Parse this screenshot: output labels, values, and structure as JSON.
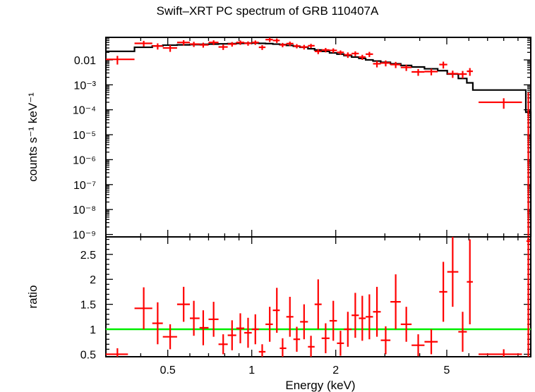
{
  "title": "Swift–XRT PC spectrum of GRB 110407A",
  "chart_data": [
    {
      "panel": "spectrum",
      "type": "scatter",
      "ylabel": "counts s⁻¹ keV⁻¹",
      "yscale": "log",
      "xscale": "log",
      "xlim": [
        0.3,
        10
      ],
      "ylim": [
        8e-10,
        0.08
      ],
      "ytick_labels": [
        "0.01",
        "10⁻³",
        "10⁻⁴",
        "10⁻⁵",
        "10⁻⁶",
        "10⁻⁷",
        "10⁻⁸",
        "10⁻⁹"
      ],
      "ytick_values": [
        0.01,
        0.001,
        0.0001,
        1e-05,
        1e-06,
        1e-07,
        1e-08,
        1e-09
      ],
      "data_color": "#ff0000",
      "model_color": "#000000",
      "series": [
        {
          "kind": "data",
          "points": [
            {
              "x": 0.33,
              "xlo": 0.3,
              "xhi": 0.38,
              "y": 0.0105,
              "yerr": 0.004
            },
            {
              "x": 0.41,
              "xlo": 0.38,
              "xhi": 0.44,
              "y": 0.046,
              "yerr": 0.012
            },
            {
              "x": 0.46,
              "xlo": 0.44,
              "xhi": 0.48,
              "y": 0.036,
              "yerr": 0.01
            },
            {
              "x": 0.51,
              "xlo": 0.48,
              "xhi": 0.54,
              "y": 0.03,
              "yerr": 0.009
            },
            {
              "x": 0.57,
              "xlo": 0.54,
              "xhi": 0.6,
              "y": 0.05,
              "yerr": 0.012
            },
            {
              "x": 0.62,
              "xlo": 0.6,
              "xhi": 0.65,
              "y": 0.043,
              "yerr": 0.01
            },
            {
              "x": 0.67,
              "xlo": 0.65,
              "xhi": 0.7,
              "y": 0.04,
              "yerr": 0.009
            },
            {
              "x": 0.73,
              "xlo": 0.7,
              "xhi": 0.76,
              "y": 0.05,
              "yerr": 0.011
            },
            {
              "x": 0.79,
              "xlo": 0.76,
              "xhi": 0.82,
              "y": 0.033,
              "yerr": 0.008
            },
            {
              "x": 0.85,
              "xlo": 0.82,
              "xhi": 0.88,
              "y": 0.043,
              "yerr": 0.009
            },
            {
              "x": 0.91,
              "xlo": 0.88,
              "xhi": 0.94,
              "y": 0.05,
              "yerr": 0.01
            },
            {
              "x": 0.97,
              "xlo": 0.94,
              "xhi": 1.0,
              "y": 0.046,
              "yerr": 0.009
            },
            {
              "x": 1.03,
              "xlo": 1.0,
              "xhi": 1.06,
              "y": 0.05,
              "yerr": 0.01
            },
            {
              "x": 1.09,
              "xlo": 1.06,
              "xhi": 1.12,
              "y": 0.032,
              "yerr": 0.007
            },
            {
              "x": 1.16,
              "xlo": 1.12,
              "xhi": 1.19,
              "y": 0.065,
              "yerr": 0.013
            },
            {
              "x": 1.23,
              "xlo": 1.19,
              "xhi": 1.26,
              "y": 0.06,
              "yerr": 0.012
            },
            {
              "x": 1.29,
              "xlo": 1.26,
              "xhi": 1.33,
              "y": 0.04,
              "yerr": 0.008
            },
            {
              "x": 1.37,
              "xlo": 1.33,
              "xhi": 1.41,
              "y": 0.045,
              "yerr": 0.009
            },
            {
              "x": 1.45,
              "xlo": 1.41,
              "xhi": 1.49,
              "y": 0.036,
              "yerr": 0.007
            },
            {
              "x": 1.54,
              "xlo": 1.49,
              "xhi": 1.59,
              "y": 0.033,
              "yerr": 0.007
            },
            {
              "x": 1.63,
              "xlo": 1.59,
              "xhi": 1.68,
              "y": 0.037,
              "yerr": 0.007
            },
            {
              "x": 1.73,
              "xlo": 1.68,
              "xhi": 1.78,
              "y": 0.022,
              "yerr": 0.005
            },
            {
              "x": 1.84,
              "xlo": 1.78,
              "xhi": 1.9,
              "y": 0.025,
              "yerr": 0.005
            },
            {
              "x": 1.96,
              "xlo": 1.9,
              "xhi": 2.02,
              "y": 0.024,
              "yerr": 0.005
            },
            {
              "x": 2.08,
              "xlo": 2.02,
              "xhi": 2.14,
              "y": 0.02,
              "yerr": 0.004
            },
            {
              "x": 2.21,
              "xlo": 2.14,
              "xhi": 2.28,
              "y": 0.016,
              "yerr": 0.004
            },
            {
              "x": 2.35,
              "xlo": 2.28,
              "xhi": 2.42,
              "y": 0.018,
              "yerr": 0.004
            },
            {
              "x": 2.49,
              "xlo": 2.42,
              "xhi": 2.56,
              "y": 0.013,
              "yerr": 0.003
            },
            {
              "x": 2.64,
              "xlo": 2.56,
              "xhi": 2.72,
              "y": 0.017,
              "yerr": 0.004
            },
            {
              "x": 2.81,
              "xlo": 2.72,
              "xhi": 2.9,
              "y": 0.007,
              "yerr": 0.002
            },
            {
              "x": 3.02,
              "xlo": 2.9,
              "xhi": 3.14,
              "y": 0.0075,
              "yerr": 0.002
            },
            {
              "x": 3.28,
              "xlo": 3.14,
              "xhi": 3.42,
              "y": 0.0065,
              "yerr": 0.0018
            },
            {
              "x": 3.58,
              "xlo": 3.42,
              "xhi": 3.74,
              "y": 0.005,
              "yerr": 0.0014
            },
            {
              "x": 3.95,
              "xlo": 3.74,
              "xhi": 4.16,
              "y": 0.0033,
              "yerr": 0.001
            },
            {
              "x": 4.4,
              "xlo": 4.16,
              "xhi": 4.64,
              "y": 0.0034,
              "yerr": 0.001
            },
            {
              "x": 4.86,
              "xlo": 4.7,
              "xhi": 5.02,
              "y": 0.0065,
              "yerr": 0.002
            },
            {
              "x": 5.25,
              "xlo": 5.02,
              "xhi": 5.5,
              "y": 0.0028,
              "yerr": 0.0009
            },
            {
              "x": 5.7,
              "xlo": 5.5,
              "xhi": 5.9,
              "y": 0.0027,
              "yerr": 0.0009
            },
            {
              "x": 6.05,
              "xlo": 5.9,
              "xhi": 6.2,
              "y": 0.0035,
              "yerr": 0.0012
            },
            {
              "x": 8.0,
              "xlo": 6.5,
              "xhi": 9.3,
              "y": 0.0002,
              "yerr": 9e-05
            }
          ]
        },
        {
          "kind": "model",
          "edges": [
            0.3,
            0.38,
            0.44,
            0.48,
            0.54,
            0.6,
            0.65,
            0.7,
            0.76,
            0.82,
            0.88,
            0.94,
            1.0,
            1.06,
            1.12,
            1.19,
            1.26,
            1.33,
            1.41,
            1.49,
            1.59,
            1.68,
            1.78,
            1.9,
            2.02,
            2.14,
            2.28,
            2.42,
            2.56,
            2.72,
            2.9,
            3.14,
            3.42,
            3.74,
            4.16,
            4.64,
            5.02,
            5.5,
            5.9,
            6.2,
            9.6,
            10.0
          ],
          "values": [
            0.022,
            0.032,
            0.036,
            0.039,
            0.04,
            0.041,
            0.042,
            0.043,
            0.044,
            0.045,
            0.046,
            0.047,
            0.047,
            0.046,
            0.045,
            0.043,
            0.041,
            0.038,
            0.035,
            0.032,
            0.028,
            0.025,
            0.022,
            0.019,
            0.017,
            0.015,
            0.013,
            0.0115,
            0.01,
            0.009,
            0.008,
            0.007,
            0.006,
            0.0052,
            0.0044,
            0.0037,
            0.0027,
            0.0018,
            0.0012,
            0.00062,
            8e-05
          ]
        }
      ]
    },
    {
      "panel": "ratio",
      "type": "scatter",
      "ylabel": "ratio",
      "xlabel": "Energy (keV)",
      "xscale": "log",
      "xlim": [
        0.3,
        10
      ],
      "ylim": [
        0.45,
        2.85
      ],
      "ytick_labels": [
        "0.5",
        "1",
        "1.5",
        "2",
        "2.5"
      ],
      "ytick_values": [
        0.5,
        1,
        1.5,
        2,
        2.5
      ],
      "xtick_labels": [
        "0.5",
        "1",
        "2",
        "5"
      ],
      "xtick_values": [
        0.5,
        1,
        2,
        5
      ],
      "reference_line": {
        "y": 1,
        "color": "#00ee00"
      },
      "data_color": "#ff0000",
      "points": [
        {
          "x": 0.33,
          "xlo": 0.3,
          "xhi": 0.36,
          "y": 0.5,
          "yerr": 0.12
        },
        {
          "x": 0.41,
          "xlo": 0.38,
          "xhi": 0.44,
          "y": 1.42,
          "yerr": 0.42
        },
        {
          "x": 0.46,
          "xlo": 0.44,
          "xhi": 0.48,
          "y": 1.12,
          "yerr": 0.42
        },
        {
          "x": 0.51,
          "xlo": 0.48,
          "xhi": 0.54,
          "y": 0.85,
          "yerr": 0.25
        },
        {
          "x": 0.57,
          "xlo": 0.54,
          "xhi": 0.6,
          "y": 1.5,
          "yerr": 0.35
        },
        {
          "x": 0.62,
          "xlo": 0.6,
          "xhi": 0.65,
          "y": 1.22,
          "yerr": 0.35
        },
        {
          "x": 0.67,
          "xlo": 0.65,
          "xhi": 0.7,
          "y": 1.03,
          "yerr": 0.35
        },
        {
          "x": 0.73,
          "xlo": 0.7,
          "xhi": 0.76,
          "y": 1.2,
          "yerr": 0.35
        },
        {
          "x": 0.79,
          "xlo": 0.76,
          "xhi": 0.82,
          "y": 0.7,
          "yerr": 0.2
        },
        {
          "x": 0.85,
          "xlo": 0.82,
          "xhi": 0.88,
          "y": 0.88,
          "yerr": 0.3
        },
        {
          "x": 0.91,
          "xlo": 0.88,
          "xhi": 0.94,
          "y": 1.02,
          "yerr": 0.3
        },
        {
          "x": 0.97,
          "xlo": 0.94,
          "xhi": 1.0,
          "y": 0.93,
          "yerr": 0.3
        },
        {
          "x": 1.03,
          "xlo": 1.0,
          "xhi": 1.06,
          "y": 1.0,
          "yerr": 0.3
        },
        {
          "x": 1.09,
          "xlo": 1.06,
          "xhi": 1.12,
          "y": 0.55,
          "yerr": 0.15
        },
        {
          "x": 1.16,
          "xlo": 1.12,
          "xhi": 1.19,
          "y": 1.1,
          "yerr": 0.35
        },
        {
          "x": 1.23,
          "xlo": 1.19,
          "xhi": 1.26,
          "y": 1.38,
          "yerr": 0.45
        },
        {
          "x": 1.29,
          "xlo": 1.26,
          "xhi": 1.33,
          "y": 0.62,
          "yerr": 0.2
        },
        {
          "x": 1.37,
          "xlo": 1.33,
          "xhi": 1.41,
          "y": 1.25,
          "yerr": 0.4
        },
        {
          "x": 1.45,
          "xlo": 1.41,
          "xhi": 1.49,
          "y": 0.8,
          "yerr": 0.25
        },
        {
          "x": 1.54,
          "xlo": 1.49,
          "xhi": 1.59,
          "y": 1.15,
          "yerr": 0.35
        },
        {
          "x": 1.63,
          "xlo": 1.59,
          "xhi": 1.68,
          "y": 0.65,
          "yerr": 0.22
        },
        {
          "x": 1.73,
          "xlo": 1.68,
          "xhi": 1.78,
          "y": 1.5,
          "yerr": 0.5
        },
        {
          "x": 1.84,
          "xlo": 1.78,
          "xhi": 1.9,
          "y": 0.82,
          "yerr": 0.3
        },
        {
          "x": 1.96,
          "xlo": 1.9,
          "xhi": 2.02,
          "y": 1.17,
          "yerr": 0.4
        },
        {
          "x": 2.08,
          "xlo": 2.02,
          "xhi": 2.14,
          "y": 0.72,
          "yerr": 0.25
        },
        {
          "x": 2.21,
          "xlo": 2.14,
          "xhi": 2.28,
          "y": 1.0,
          "yerr": 0.35
        },
        {
          "x": 2.35,
          "xlo": 2.28,
          "xhi": 2.42,
          "y": 1.28,
          "yerr": 0.45
        },
        {
          "x": 2.49,
          "xlo": 2.42,
          "xhi": 2.56,
          "y": 1.22,
          "yerr": 0.45
        },
        {
          "x": 2.64,
          "xlo": 2.56,
          "xhi": 2.72,
          "y": 1.25,
          "yerr": 0.45
        },
        {
          "x": 2.81,
          "xlo": 2.72,
          "xhi": 2.9,
          "y": 1.35,
          "yerr": 0.5
        },
        {
          "x": 3.02,
          "xlo": 2.9,
          "xhi": 3.14,
          "y": 0.78,
          "yerr": 0.28
        },
        {
          "x": 3.28,
          "xlo": 3.14,
          "xhi": 3.42,
          "y": 1.55,
          "yerr": 0.55
        },
        {
          "x": 3.58,
          "xlo": 3.42,
          "xhi": 3.74,
          "y": 1.1,
          "yerr": 0.35
        },
        {
          "x": 3.95,
          "xlo": 3.74,
          "xhi": 4.16,
          "y": 0.68,
          "yerr": 0.22
        },
        {
          "x": 4.4,
          "xlo": 4.16,
          "xhi": 4.64,
          "y": 0.75,
          "yerr": 0.25
        },
        {
          "x": 4.86,
          "xlo": 4.7,
          "xhi": 5.02,
          "y": 1.75,
          "yerr": 0.6
        },
        {
          "x": 5.25,
          "xlo": 5.02,
          "xhi": 5.5,
          "y": 2.15,
          "yerr": 0.7
        },
        {
          "x": 5.7,
          "xlo": 5.5,
          "xhi": 5.9,
          "y": 0.95,
          "yerr": 0.4
        },
        {
          "x": 6.05,
          "xlo": 5.9,
          "xhi": 6.2,
          "y": 1.95,
          "yerr": 0.85
        },
        {
          "x": 8.0,
          "xlo": 6.5,
          "xhi": 9.3,
          "y": 0.5,
          "yerr": 0.1
        }
      ]
    }
  ]
}
